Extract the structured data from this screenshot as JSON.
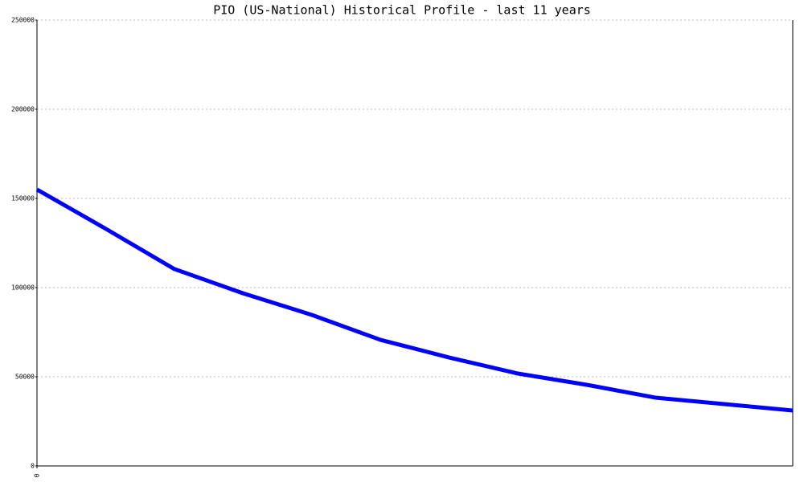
{
  "chart_data": {
    "type": "line",
    "title": "PIO (US-National) Historical Profile - last 11 years",
    "series": [
      {
        "color": "#0000ff",
        "x": [
          0,
          1,
          2,
          3,
          4,
          5,
          6,
          7,
          8,
          9,
          10,
          11
        ],
        "values": [
          155000,
          133000,
          110400,
          96800,
          84700,
          70700,
          60800,
          51800,
          45500,
          38300,
          34700,
          31100
        ]
      }
    ],
    "xlim": [
      0,
      11
    ],
    "xticks": [
      0
    ],
    "ylim": [
      0,
      250000
    ],
    "yticks": [
      0,
      50000,
      100000,
      150000,
      200000,
      250000
    ],
    "grid": true
  }
}
